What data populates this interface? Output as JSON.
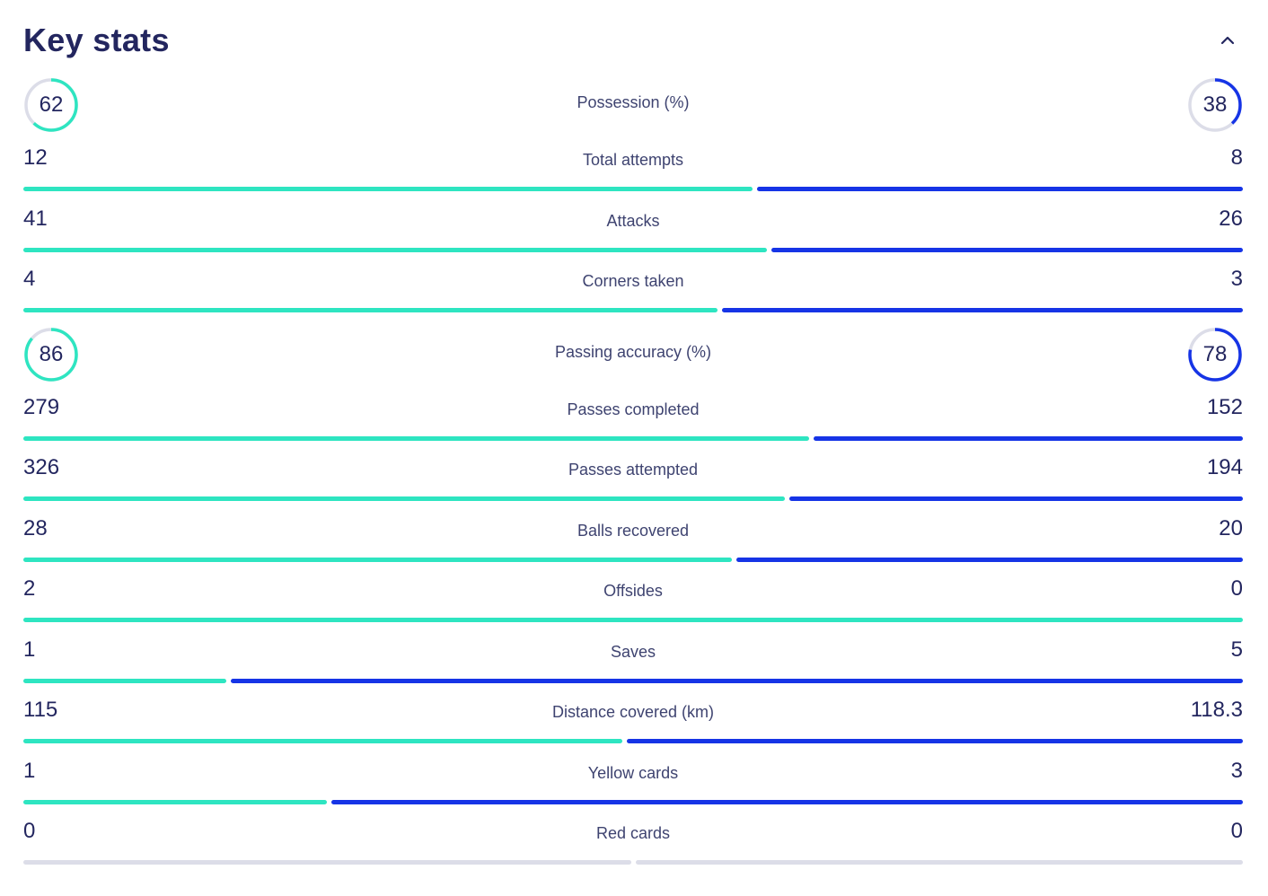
{
  "title": "Key stats",
  "colors": {
    "home": "#2ee5c1",
    "away": "#1634e6",
    "track": "#dcdde8",
    "text": "#23265f"
  },
  "icons": {
    "collapse": "chevron-up-icon"
  },
  "ring_stats": [
    {
      "label": "Possession (%)",
      "home": "62",
      "away": "38",
      "home_pct": 62,
      "away_pct": 38
    },
    {
      "label": "Passing accuracy (%)",
      "home": "86",
      "away": "78",
      "home_pct": 86,
      "away_pct": 78
    }
  ],
  "bar_stats": [
    {
      "label": "Total attempts",
      "home": "12",
      "away": "8",
      "home_share": 0.6,
      "away_share": 0.4
    },
    {
      "label": "Attacks",
      "home": "41",
      "away": "26",
      "home_share": 0.612,
      "away_share": 0.388
    },
    {
      "label": "Corners taken",
      "home": "4",
      "away": "3",
      "home_share": 0.571,
      "away_share": 0.429
    },
    {
      "label": "Passes completed",
      "home": "279",
      "away": "152",
      "home_share": 0.647,
      "away_share": 0.353
    },
    {
      "label": "Passes attempted",
      "home": "326",
      "away": "194",
      "home_share": 0.627,
      "away_share": 0.373
    },
    {
      "label": "Balls recovered",
      "home": "28",
      "away": "20",
      "home_share": 0.583,
      "away_share": 0.417
    },
    {
      "label": "Offsides",
      "home": "2",
      "away": "0",
      "home_share": 1.0,
      "away_share": 0.0
    },
    {
      "label": "Saves",
      "home": "1",
      "away": "5",
      "home_share": 0.167,
      "away_share": 0.833
    },
    {
      "label": "Distance covered (km)",
      "home": "115",
      "away": "118.3",
      "home_share": 0.493,
      "away_share": 0.507
    },
    {
      "label": "Yellow cards",
      "home": "1",
      "away": "3",
      "home_share": 0.25,
      "away_share": 0.75
    },
    {
      "label": "Red cards",
      "home": "0",
      "away": "0",
      "home_share": 0.0,
      "away_share": 0.0
    }
  ]
}
